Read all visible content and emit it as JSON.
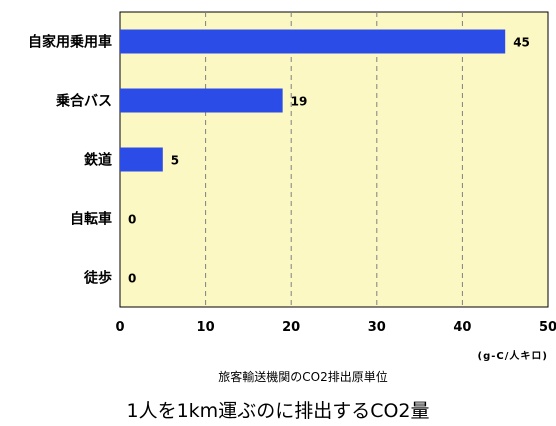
{
  "chart_data": {
    "type": "bar",
    "orientation": "horizontal",
    "categories": [
      "自家用乗用車",
      "乗合バス",
      "鉄道",
      "自転車",
      "徒歩"
    ],
    "values": [
      45,
      19,
      5,
      0,
      0
    ],
    "data_labels": [
      "45",
      "19",
      "5",
      "0",
      "0"
    ],
    "xlim": [
      0,
      50
    ],
    "x_ticks": [
      "0",
      "10",
      "20",
      "30",
      "40",
      "50"
    ],
    "unit": "(g-C/人キロ)",
    "subtitle": "旅客輸送機関のCO2排出原単位",
    "title": "1人を1km運ぶのに排出するCO2量",
    "grid": "vertical dashed",
    "colors": {
      "plot_bg": "#fcf8c4",
      "bar": "#2c4ce8",
      "grid": "#7f7f7f"
    }
  }
}
